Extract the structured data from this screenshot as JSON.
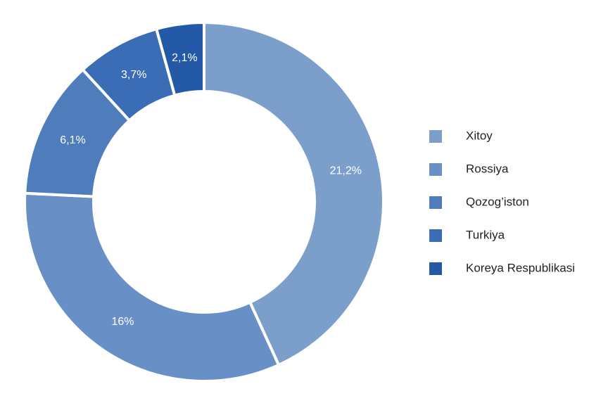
{
  "chart_data": {
    "type": "pie",
    "donut": true,
    "categories": [
      "Xitoy",
      "Rossiya",
      "Qozog’iston",
      "Turkiya",
      "Koreya Respublikasi"
    ],
    "values": [
      21.2,
      16,
      6.1,
      3.7,
      2.1
    ],
    "value_labels": [
      "21,2%",
      "16%",
      "6,1%",
      "3,7%",
      "2,1%"
    ],
    "colors": [
      "#7b9ecb",
      "#6990c6",
      "#4f7dbb",
      "#3a6db5",
      "#2459a7"
    ],
    "legend": "right"
  }
}
